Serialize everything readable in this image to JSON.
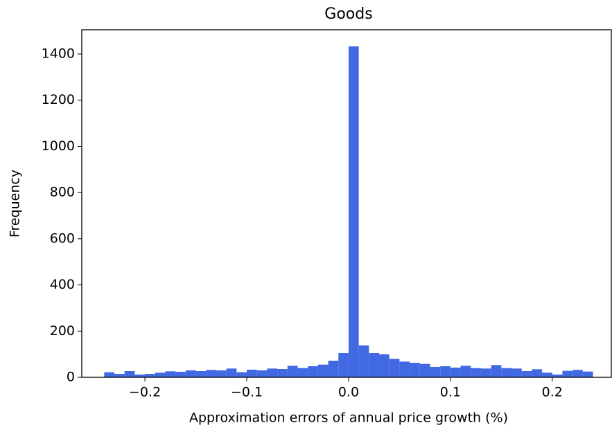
{
  "chart_data": {
    "type": "histogram",
    "title": "Goods",
    "x_label": "Approximation errors of annual price growth (%)",
    "y_label": "Frequency",
    "color": "#4169e1",
    "bins": [
      -0.24,
      -0.23,
      -0.22,
      -0.21,
      -0.2,
      -0.19,
      -0.18,
      -0.17,
      -0.16,
      -0.15,
      -0.14,
      -0.13,
      -0.12,
      -0.11,
      -0.1,
      -0.09,
      -0.08,
      -0.07,
      -0.06,
      -0.05,
      -0.04,
      -0.03,
      -0.02,
      -0.01,
      0,
      0.01,
      0.02,
      0.03,
      0.04,
      0.05,
      0.06,
      0.07,
      0.08,
      0.09,
      0.1,
      0.11,
      0.12,
      0.13,
      0.14,
      0.15,
      0.16,
      0.17,
      0.18,
      0.19,
      0.2,
      0.21,
      0.22,
      0.23,
      0.24
    ],
    "values": [
      22,
      15,
      27,
      12,
      15,
      20,
      26,
      24,
      30,
      27,
      32,
      30,
      38,
      22,
      33,
      30,
      38,
      36,
      50,
      40,
      48,
      55,
      72,
      105,
      1433,
      138,
      105,
      100,
      80,
      68,
      63,
      58,
      45,
      48,
      42,
      50,
      40,
      38,
      53,
      40,
      38,
      27,
      35,
      20,
      12,
      28,
      32,
      25
    ],
    "xlim": [
      -0.262,
      0.258
    ],
    "ylim": [
      0,
      1505
    ],
    "xticks": [
      {
        "value": -0.2,
        "label": "−0.2"
      },
      {
        "value": -0.1,
        "label": "−0.1"
      },
      {
        "value": 0,
        "label": "0.0"
      },
      0.1,
      0.2
    ],
    "yticks": [
      0,
      200,
      400,
      600,
      800,
      1000,
      1200,
      1400
    ]
  }
}
